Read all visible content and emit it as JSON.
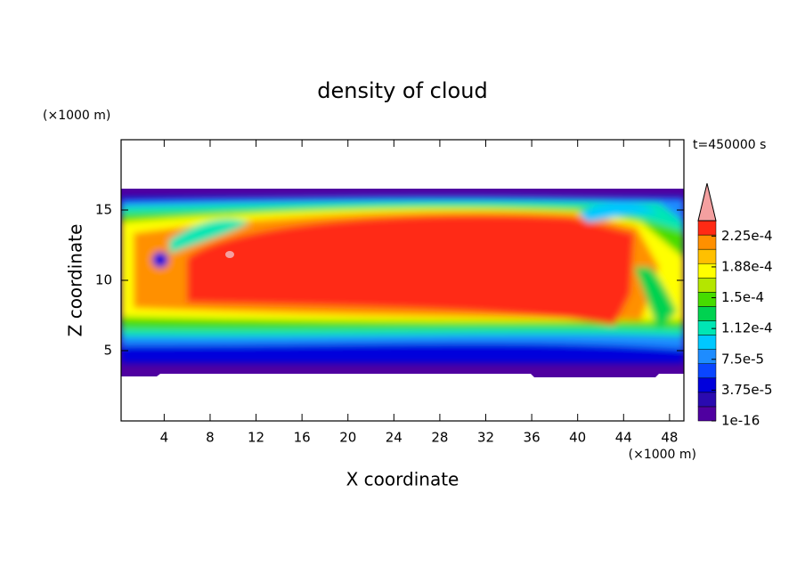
{
  "chart_data": {
    "type": "contour",
    "title": "density of cloud",
    "xlabel": "X coordinate",
    "ylabel": "Z coordinate",
    "x_unit": "(×1000 m)",
    "y_unit": "(×1000 m)",
    "annotation": "t=450000 s",
    "xlim": [
      0.25,
      49.25
    ],
    "xticks": [
      4,
      8,
      12,
      16,
      20,
      24,
      28,
      32,
      36,
      40,
      44,
      48
    ],
    "ylim": [
      0,
      20
    ],
    "yticks": [
      5,
      10,
      15
    ],
    "colorbar": {
      "lim": [
        1e-16,
        0.00024375
      ],
      "colors": [
        "#4f00a0",
        "#2a0ab0",
        "#0000dc",
        "#0a46ff",
        "#1e8cff",
        "#00c8ff",
        "#00e6b4",
        "#00d250",
        "#46dc00",
        "#b4e600",
        "#ffff00",
        "#ffc000",
        "#ff9000",
        "#ff2a14"
      ],
      "over_color": "#f4a0a0",
      "ticks": [
        {
          "value": 1e-16,
          "label": "1e-16"
        },
        {
          "value": 3.75e-05,
          "label": "3.75e-5"
        },
        {
          "value": 7.5e-05,
          "label": "7.5e-5"
        },
        {
          "value": 0.0001125,
          "label": "1.12e-4"
        },
        {
          "value": 0.00015,
          "label": "1.5e-4"
        },
        {
          "value": 0.0001875,
          "label": "1.88e-4"
        },
        {
          "value": 0.000225,
          "label": "2.25e-4"
        }
      ]
    }
  }
}
